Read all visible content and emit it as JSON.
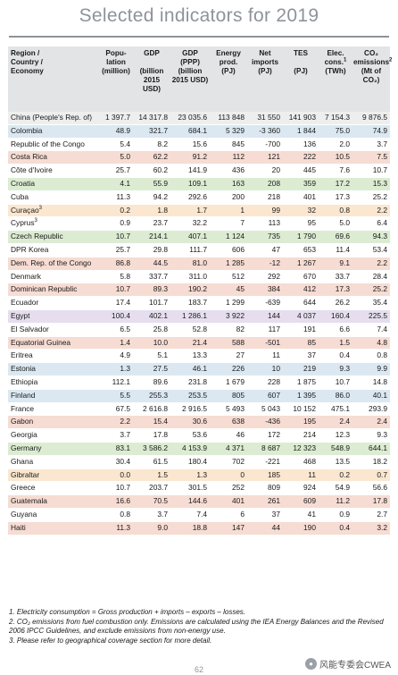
{
  "page": {
    "title": "Selected indicators for 2019",
    "page_number": "62",
    "watermark": "风能专委会CWEA",
    "watermark_icon": "wechat-icon"
  },
  "table": {
    "headers": [
      {
        "label": "Region /\nCountry /\nEconomy",
        "sup": ""
      },
      {
        "label": "Popu-\nlation\n(million)",
        "sup": ""
      },
      {
        "label": "GDP\n\n(billion\n2015 USD)",
        "sup": ""
      },
      {
        "label": "GDP\n(PPP)\n(billion\n2015 USD)",
        "sup": ""
      },
      {
        "label": "Energy\nprod.\n(PJ)",
        "sup": ""
      },
      {
        "label": "Net\nimports\n(PJ)",
        "sup": ""
      },
      {
        "label": "TES\n\n(PJ)",
        "sup": ""
      },
      {
        "label": "Elec.\ncons.",
        "sup": "1",
        "suffix": "\n(TWh)"
      },
      {
        "label": "CO₂\nemissions",
        "sup": "2",
        "suffix": "\n(Mt of CO₂)"
      }
    ],
    "rows": [
      {
        "color": "china",
        "name": "China (People's Rep. of)",
        "sup": "",
        "values": [
          "1 397.7",
          "14 317.8",
          "23 035.6",
          "113 848",
          "31 550",
          "141 903",
          "7 154.3",
          "9 876.5"
        ]
      },
      {
        "color": "blue",
        "name": "Colombia",
        "sup": "",
        "values": [
          "48.9",
          "321.7",
          "684.1",
          "5 329",
          "-3 360",
          "1 844",
          "75.0",
          "74.9"
        ]
      },
      {
        "color": "white",
        "name": "Republic of the Congo",
        "sup": "",
        "values": [
          "5.4",
          "8.2",
          "15.6",
          "845",
          "-700",
          "136",
          "2.0",
          "3.7"
        ]
      },
      {
        "color": "pink",
        "name": "Costa Rica",
        "sup": "",
        "values": [
          "5.0",
          "62.2",
          "91.2",
          "112",
          "121",
          "222",
          "10.5",
          "7.5"
        ]
      },
      {
        "color": "white",
        "name": "Côte d'Ivoire",
        "sup": "",
        "values": [
          "25.7",
          "60.2",
          "141.9",
          "436",
          "20",
          "445",
          "7.6",
          "10.7"
        ]
      },
      {
        "color": "green",
        "name": "Croatia",
        "sup": "",
        "values": [
          "4.1",
          "55.9",
          "109.1",
          "163",
          "208",
          "359",
          "17.2",
          "15.3"
        ]
      },
      {
        "color": "white",
        "name": "Cuba",
        "sup": "",
        "values": [
          "11.3",
          "94.2",
          "292.6",
          "200",
          "218",
          "401",
          "17.3",
          "25.2"
        ]
      },
      {
        "color": "orange",
        "name": "Curaçao",
        "sup": "3",
        "values": [
          "0.2",
          "1.8",
          "1.7",
          "1",
          "99",
          "32",
          "0.8",
          "2.2"
        ]
      },
      {
        "color": "white",
        "name": "Cyprus",
        "sup": "3",
        "values": [
          "0.9",
          "23.7",
          "32.2",
          "7",
          "113",
          "95",
          "5.0",
          "6.4"
        ]
      },
      {
        "color": "green",
        "name": "Czech Republic",
        "sup": "",
        "values": [
          "10.7",
          "214.1",
          "407.1",
          "1 124",
          "735",
          "1 790",
          "69.6",
          "94.3"
        ]
      },
      {
        "color": "white",
        "name": "DPR Korea",
        "sup": "",
        "values": [
          "25.7",
          "29.8",
          "111.7",
          "606",
          "47",
          "653",
          "11.4",
          "53.4"
        ]
      },
      {
        "color": "pink",
        "name": "Dem. Rep. of the Congo",
        "sup": "",
        "values": [
          "86.8",
          "44.5",
          "81.0",
          "1 285",
          "-12",
          "1 267",
          "9.1",
          "2.2"
        ]
      },
      {
        "color": "white",
        "name": "Denmark",
        "sup": "",
        "values": [
          "5.8",
          "337.7",
          "311.0",
          "512",
          "292",
          "670",
          "33.7",
          "28.4"
        ]
      },
      {
        "color": "pink",
        "name": "Dominican Republic",
        "sup": "",
        "values": [
          "10.7",
          "89.3",
          "190.2",
          "45",
          "384",
          "412",
          "17.3",
          "25.2"
        ]
      },
      {
        "color": "white",
        "name": "Ecuador",
        "sup": "",
        "values": [
          "17.4",
          "101.7",
          "183.7",
          "1 299",
          "-639",
          "644",
          "26.2",
          "35.4"
        ]
      },
      {
        "color": "purple",
        "name": "Egypt",
        "sup": "",
        "values": [
          "100.4",
          "402.1",
          "1 286.1",
          "3 922",
          "144",
          "4 037",
          "160.4",
          "225.5"
        ]
      },
      {
        "color": "white",
        "name": "El Salvador",
        "sup": "",
        "values": [
          "6.5",
          "25.8",
          "52.8",
          "82",
          "117",
          "191",
          "6.6",
          "7.4"
        ]
      },
      {
        "color": "pink",
        "name": "Equatorial Guinea",
        "sup": "",
        "values": [
          "1.4",
          "10.0",
          "21.4",
          "588",
          "-501",
          "85",
          "1.5",
          "4.8"
        ]
      },
      {
        "color": "white",
        "name": "Eritrea",
        "sup": "",
        "values": [
          "4.9",
          "5.1",
          "13.3",
          "27",
          "11",
          "37",
          "0.4",
          "0.8"
        ]
      },
      {
        "color": "blue",
        "name": "Estonia",
        "sup": "",
        "values": [
          "1.3",
          "27.5",
          "46.1",
          "226",
          "10",
          "219",
          "9.3",
          "9.9"
        ]
      },
      {
        "color": "white",
        "name": "Ethiopia",
        "sup": "",
        "values": [
          "112.1",
          "89.6",
          "231.8",
          "1 679",
          "228",
          "1 875",
          "10.7",
          "14.8"
        ]
      },
      {
        "color": "blue",
        "name": "Finland",
        "sup": "",
        "values": [
          "5.5",
          "255.3",
          "253.5",
          "805",
          "607",
          "1 395",
          "86.0",
          "40.1"
        ]
      },
      {
        "color": "white",
        "name": "France",
        "sup": "",
        "values": [
          "67.5",
          "2 616.8",
          "2 916.5",
          "5 493",
          "5 043",
          "10 152",
          "475.1",
          "293.9"
        ]
      },
      {
        "color": "pink",
        "name": "Gabon",
        "sup": "",
        "values": [
          "2.2",
          "15.4",
          "30.6",
          "638",
          "-436",
          "195",
          "2.4",
          "2.4"
        ]
      },
      {
        "color": "white",
        "name": "Georgia",
        "sup": "",
        "values": [
          "3.7",
          "17.8",
          "53.6",
          "46",
          "172",
          "214",
          "12.3",
          "9.3"
        ]
      },
      {
        "color": "green",
        "name": "Germany",
        "sup": "",
        "values": [
          "83.1",
          "3 586.2",
          "4 153.9",
          "4 371",
          "8 687",
          "12 323",
          "548.9",
          "644.1"
        ]
      },
      {
        "color": "white",
        "name": "Ghana",
        "sup": "",
        "values": [
          "30.4",
          "61.5",
          "180.4",
          "702",
          "-221",
          "468",
          "13.5",
          "18.2"
        ]
      },
      {
        "color": "orange",
        "name": "Gibraltar",
        "sup": "",
        "values": [
          "0.0",
          "1.5",
          "1.3",
          "0",
          "185",
          "11",
          "0.2",
          "0.7"
        ]
      },
      {
        "color": "white",
        "name": "Greece",
        "sup": "",
        "values": [
          "10.7",
          "203.7",
          "301.5",
          "252",
          "809",
          "924",
          "54.9",
          "56.6"
        ]
      },
      {
        "color": "pink",
        "name": "Guatemala",
        "sup": "",
        "values": [
          "16.6",
          "70.5",
          "144.6",
          "401",
          "261",
          "609",
          "11.2",
          "17.8"
        ]
      },
      {
        "color": "white",
        "name": "Guyana",
        "sup": "",
        "values": [
          "0.8",
          "3.7",
          "7.4",
          "6",
          "37",
          "41",
          "0.9",
          "2.7"
        ]
      },
      {
        "color": "pink",
        "name": "Haiti",
        "sup": "",
        "values": [
          "11.3",
          "9.0",
          "18.8",
          "147",
          "44",
          "190",
          "0.4",
          "3.2"
        ]
      }
    ]
  },
  "footnotes": [
    "1. Electricity consumption = Gross production + imports – exports – losses.",
    "2. CO₂ emissions from fuel combustion only. Emissions are calculated using the IEA Energy Balances and the Revised 2006 IPCC Guidelines, and exclude emissions from non-energy use.",
    "3. Please refer to geographical coverage section for more detail."
  ],
  "colors": {
    "title": "#8e939a",
    "header_bg": "#e3e4e6",
    "blue": "#dbe8f2",
    "green": "#dcecd2",
    "pink": "#f6dcd3",
    "purple": "#e6deee",
    "orange": "#fbe7cf"
  }
}
